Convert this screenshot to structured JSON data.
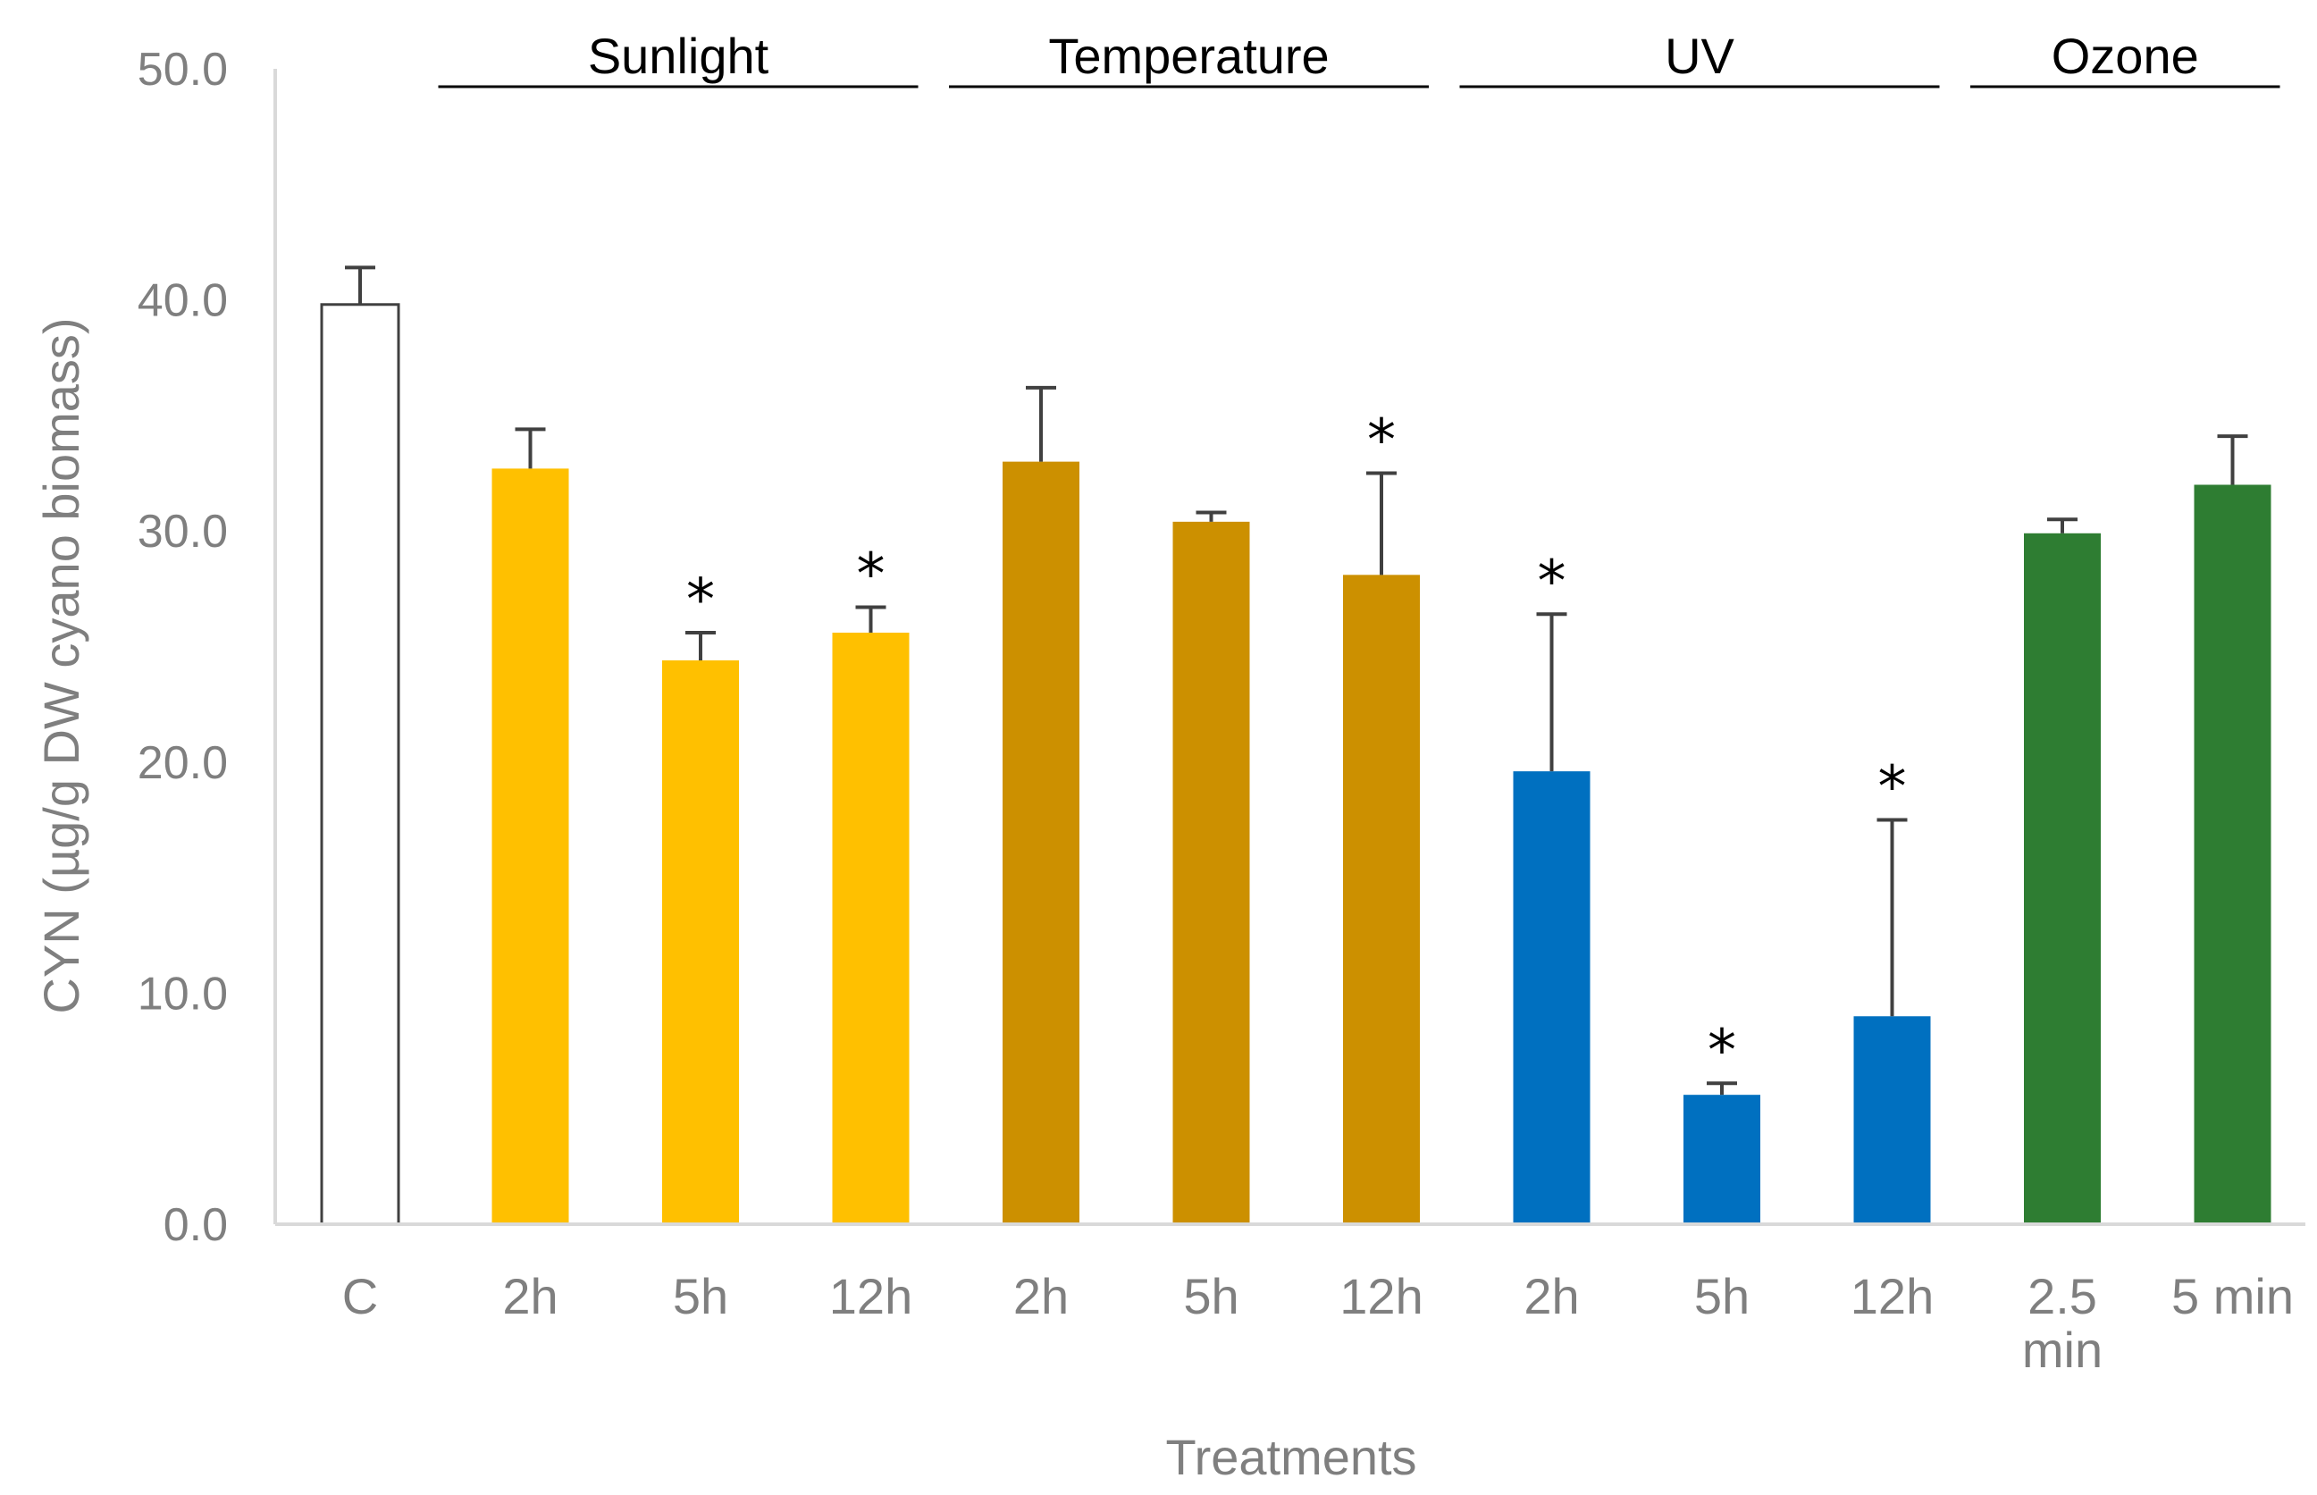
{
  "chart_data": {
    "type": "bar",
    "title": "",
    "xlabel": "Treatments",
    "ylabel": "CYN (µg/g DW cyano biomass)",
    "ylim": [
      0,
      50
    ],
    "yticks": [
      "0.0",
      "10.0",
      "20.0",
      "30.0",
      "40.0",
      "50.0"
    ],
    "grid": false,
    "categories": [
      [
        "C"
      ],
      [
        "2h"
      ],
      [
        "5h"
      ],
      [
        "12h"
      ],
      [
        "2h"
      ],
      [
        "5h"
      ],
      [
        "12h"
      ],
      [
        "2h"
      ],
      [
        "5h"
      ],
      [
        "12h"
      ],
      [
        "2.5",
        "min"
      ],
      [
        "5 min"
      ]
    ],
    "values": [
      39.8,
      32.7,
      24.4,
      25.6,
      33.0,
      30.4,
      28.1,
      19.6,
      5.6,
      9.0,
      29.9,
      32.0
    ],
    "error": [
      1.6,
      1.7,
      1.2,
      1.1,
      3.2,
      0.4,
      4.4,
      6.8,
      0.5,
      8.5,
      0.6,
      2.1
    ],
    "significant_marker": "*",
    "significant": [
      false,
      false,
      true,
      true,
      false,
      false,
      true,
      true,
      true,
      true,
      false,
      false
    ],
    "colors": [
      "#ffffff",
      "#ffc000",
      "#ffc000",
      "#ffc000",
      "#cc9000",
      "#cc9000",
      "#cc9000",
      "#0070c0",
      "#0070c0",
      "#0070c0",
      "#2e7d32",
      "#2e7d32"
    ],
    "groups": [
      {
        "label": "Sunlight",
        "first": 1,
        "last": 3
      },
      {
        "label": "Temperature",
        "first": 4,
        "last": 6
      },
      {
        "label": "UV",
        "first": 7,
        "last": 9
      },
      {
        "label": "Ozone",
        "first": 10,
        "last": 11
      }
    ]
  }
}
